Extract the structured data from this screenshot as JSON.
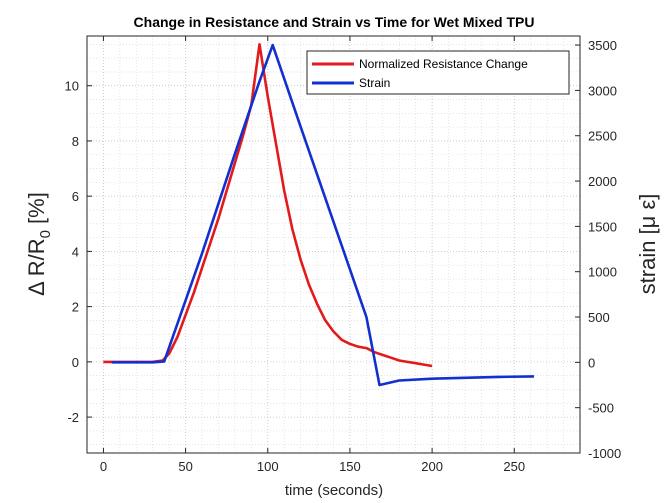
{
  "chart_data": {
    "type": "line",
    "title": "Change in Resistance and Strain vs Time for Wet Mixed TPU",
    "xlabel": "time (seconds)",
    "ylabel_left": "Δ R/R",
    "ylabel_left_sub": "0",
    "ylabel_left_unit": "[%]",
    "ylabel_right": "strain [μ ε]",
    "xlim": [
      -10,
      290
    ],
    "ylim_left": [
      -3.3,
      11.8
    ],
    "ylim_right": [
      -1000,
      3600
    ],
    "xticks": [
      0,
      50,
      100,
      150,
      200,
      250
    ],
    "yticks_left": [
      -2,
      0,
      2,
      4,
      6,
      8,
      10
    ],
    "yticks_right": [
      -1000,
      -500,
      0,
      500,
      1000,
      1500,
      2000,
      2500,
      3000,
      3500
    ],
    "grid": "on (major and minor, dotted)",
    "legend_position": "top-right",
    "series": [
      {
        "name": "Normalized Resistance Change",
        "axis": "left",
        "color": "#e31a1c",
        "x": [
          0,
          10,
          20,
          30,
          36,
          40,
          45,
          50,
          55,
          60,
          65,
          70,
          75,
          80,
          85,
          90,
          95,
          100,
          105,
          110,
          115,
          120,
          125,
          130,
          135,
          140,
          145,
          150,
          155,
          160,
          165,
          170,
          175,
          180,
          185,
          190,
          195,
          200
        ],
        "y": [
          0,
          0,
          0,
          0,
          0.05,
          0.3,
          0.9,
          1.7,
          2.5,
          3.4,
          4.3,
          5.2,
          6.2,
          7.2,
          8.2,
          9.3,
          11.5,
          9.6,
          7.9,
          6.2,
          4.8,
          3.7,
          2.8,
          2.1,
          1.5,
          1.1,
          0.8,
          0.65,
          0.55,
          0.5,
          0.35,
          0.25,
          0.15,
          0.05,
          0.0,
          -0.05,
          -0.1,
          -0.15
        ]
      },
      {
        "name": "Strain",
        "axis": "right",
        "color": "#1230d0",
        "x": [
          5,
          20,
          30,
          37,
          60,
          80,
          95,
          103,
          120,
          140,
          160,
          168,
          180,
          200,
          220,
          240,
          262
        ],
        "y": [
          0,
          0,
          0,
          10,
          1200,
          2300,
          3100,
          3500,
          2600,
          1550,
          500,
          -250,
          -200,
          -180,
          -170,
          -160,
          -155
        ]
      }
    ]
  }
}
